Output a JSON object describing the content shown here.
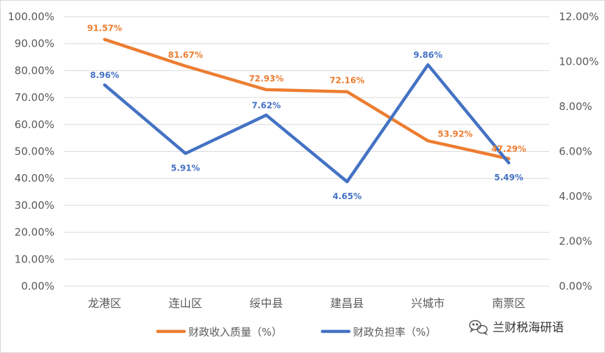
{
  "chart_data": {
    "type": "line",
    "title": "",
    "categories": [
      "龙港区",
      "连山区",
      "绥中县",
      "建昌县",
      "兴城市",
      "南票区"
    ],
    "series": [
      {
        "name": "财政收入质量（%）",
        "axis": "left",
        "color": "#ED7D31",
        "values": [
          91.57,
          81.67,
          72.93,
          72.16,
          53.92,
          47.29
        ],
        "labels": [
          "91.57%",
          "81.67%",
          "72.93%",
          "72.16%",
          "53.92%",
          "47.29%"
        ]
      },
      {
        "name": "财政负担率（%）",
        "axis": "right",
        "color": "#4472C4",
        "values": [
          8.96,
          5.91,
          7.62,
          4.65,
          9.86,
          5.49
        ],
        "labels": [
          "8.96%",
          "5.91%",
          "7.62%",
          "4.65%",
          "9.86%",
          "5.49%"
        ]
      }
    ],
    "left_axis": {
      "ylim": [
        0,
        100
      ],
      "ticks": [
        "0.00%",
        "10.00%",
        "20.00%",
        "30.00%",
        "40.00%",
        "50.00%",
        "60.00%",
        "70.00%",
        "80.00%",
        "90.00%",
        "100.00%"
      ]
    },
    "right_axis": {
      "ylim": [
        0,
        12
      ],
      "ticks": [
        "0.00%",
        "2.00%",
        "4.00%",
        "6.00%",
        "8.00%",
        "10.00%",
        "12.00%"
      ]
    },
    "grid": true,
    "legend_position": "bottom"
  },
  "watermark": {
    "text": "兰财税海研语",
    "icon": "wechat-icon"
  }
}
